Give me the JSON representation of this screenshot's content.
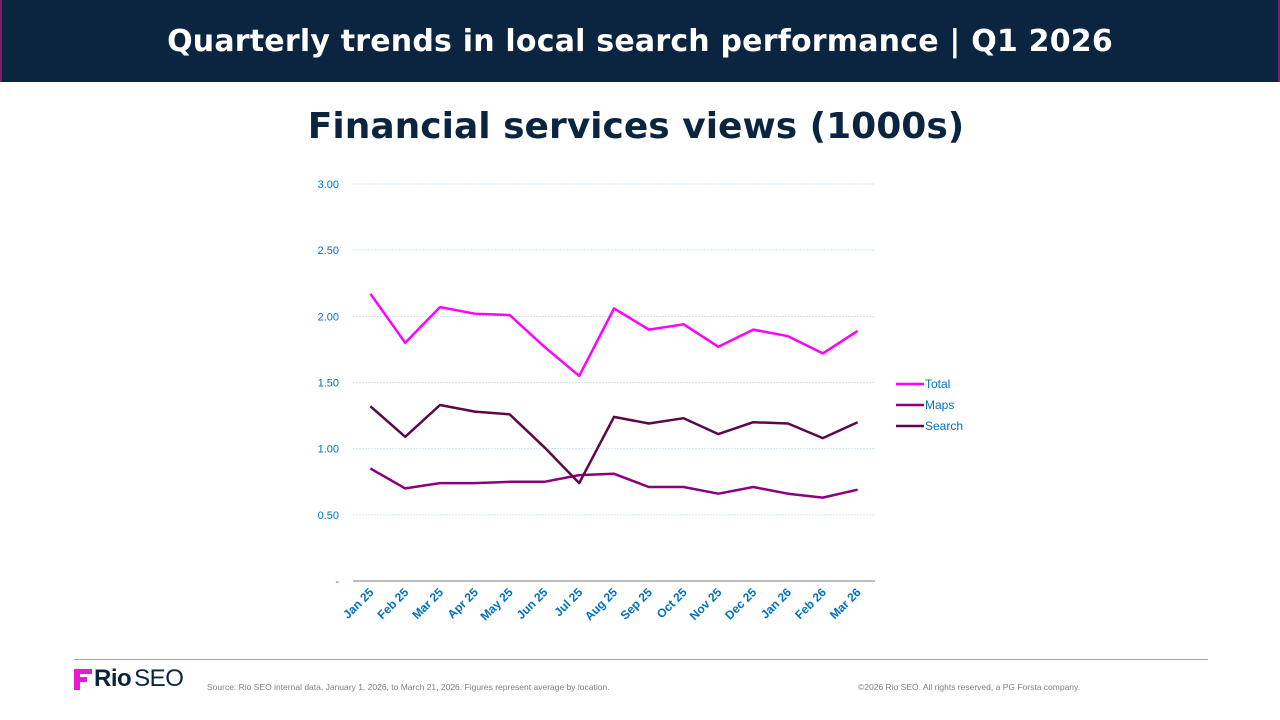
{
  "header": {
    "title": "Quarterly trends in local search performance | Q1 2026"
  },
  "footer": {
    "logo_bold": "Rio",
    "logo_light": "SEO",
    "source": "Source: Rio SEO internal data, January 1, 2026, to March 21, 2026. Figures represent average by location.",
    "copyright": "©2026 Rio SEO. All rights reserved, a PG Forsta company."
  },
  "chart_data": {
    "type": "line",
    "title": "Financial services views (1000s)",
    "xlabel": "",
    "ylabel": "",
    "ylim": [
      0,
      3
    ],
    "yticks": [
      0,
      0.5,
      1.0,
      1.5,
      2.0,
      2.5,
      3.0
    ],
    "ytick_labels": [
      "-",
      "0.50",
      "1.00",
      "1.50",
      "2.00",
      "2.50",
      "3.00"
    ],
    "grid": true,
    "legend_position": "right",
    "categories": [
      "Jan 25",
      "Feb 25",
      "Mar 25",
      "Apr 25",
      "May 25",
      "Jun 25",
      "Jul 25",
      "Aug 25",
      "Sep 25",
      "Oct 25",
      "Nov 25",
      "Dec 25",
      "Jan 26",
      "Feb 26",
      "Mar 26"
    ],
    "series": [
      {
        "name": "Total",
        "color": "#ff00ff",
        "values": [
          2.17,
          1.8,
          2.07,
          2.02,
          2.01,
          1.77,
          1.55,
          2.06,
          1.9,
          1.94,
          1.77,
          1.9,
          1.85,
          1.72,
          1.89
        ]
      },
      {
        "name": "Maps",
        "color": "#8b007c",
        "values": [
          0.85,
          0.7,
          0.74,
          0.74,
          0.75,
          0.75,
          0.8,
          0.81,
          0.71,
          0.71,
          0.66,
          0.71,
          0.66,
          0.63,
          0.69
        ]
      },
      {
        "name": "Search",
        "color": "#5c0747",
        "values": [
          1.32,
          1.09,
          1.33,
          1.28,
          1.26,
          1.01,
          0.74,
          1.24,
          1.19,
          1.23,
          1.11,
          1.2,
          1.19,
          1.08,
          1.2
        ]
      }
    ],
    "colors": {
      "axis_labels": "#0070c0",
      "gridline": "#cfe3f2",
      "axis_line": "#7f7f7f"
    }
  }
}
